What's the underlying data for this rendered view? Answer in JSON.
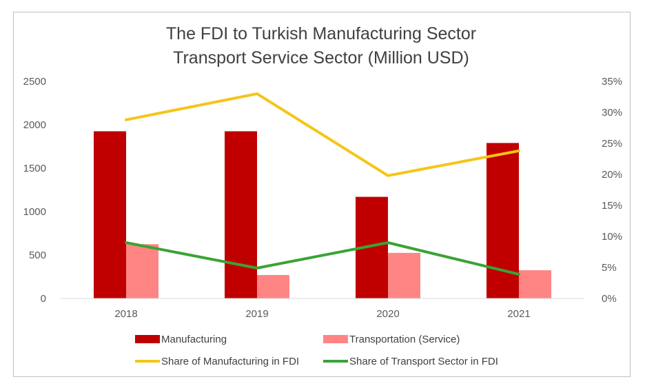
{
  "chart_data": {
    "type": "bar",
    "title": [
      "The FDI to Turkish Manufacturing Sector",
      "Transport Service Sector (Million USD)"
    ],
    "categories": [
      "2018",
      "2019",
      "2020",
      "2021"
    ],
    "bar_series": [
      {
        "name": "Manufacturing",
        "color": "#c00000",
        "values": [
          1925,
          1925,
          1170,
          1790
        ]
      },
      {
        "name": "Transportation (Service)",
        "color": "#ff8585",
        "values": [
          625,
          270,
          525,
          325
        ]
      }
    ],
    "line_series": [
      {
        "name": "Share of Manufacturing in FDI",
        "color": "#f5c518",
        "values": [
          28.8,
          33.0,
          19.8,
          23.8
        ]
      },
      {
        "name": "Share of Transport Sector in FDI",
        "color": "#3aa335",
        "values": [
          9.0,
          4.9,
          9.0,
          3.9
        ]
      }
    ],
    "y_left": {
      "min": 0,
      "max": 2500,
      "ticks": [
        "0",
        "500",
        "1000",
        "1500",
        "2000",
        "2500"
      ]
    },
    "y_right": {
      "min": 0,
      "max": 35,
      "ticks": [
        "0%",
        "5%",
        "10%",
        "15%",
        "20%",
        "25%",
        "30%",
        "35%"
      ]
    },
    "legend": [
      "Manufacturing",
      "Transportation (Service)",
      "Share of Manufacturing in FDI",
      "Share of Transport Sector in FDI"
    ],
    "grid": false,
    "legend_position": "bottom"
  }
}
